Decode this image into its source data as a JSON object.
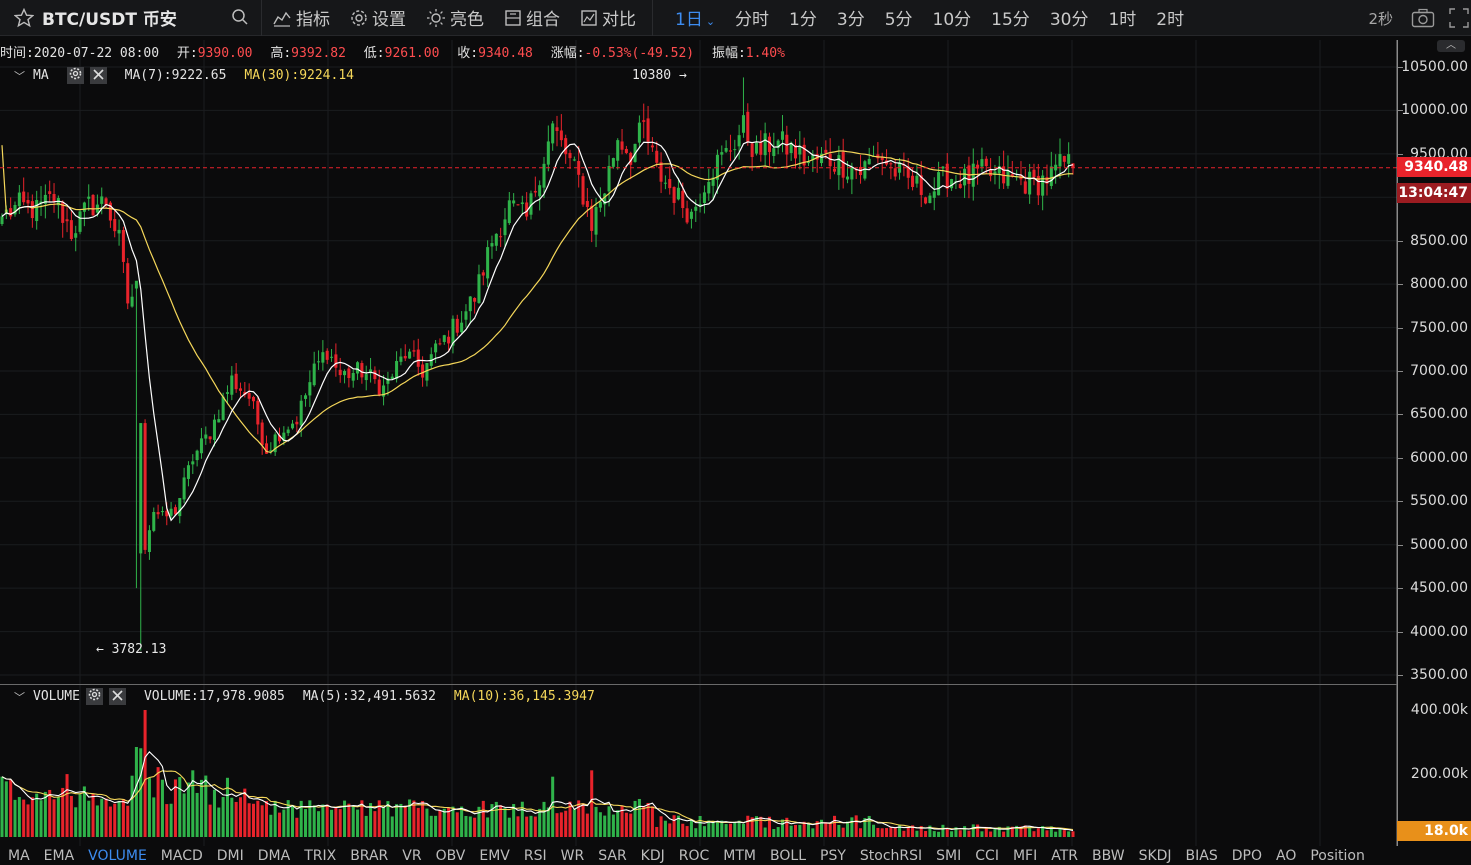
{
  "toolbar": {
    "symbol": "BTC/USDT 币安",
    "buttons": [
      "指标",
      "设置",
      "亮色",
      "组合",
      "对比"
    ],
    "intervals": [
      "1日",
      "分时",
      "1分",
      "3分",
      "5分",
      "10分",
      "15分",
      "30分",
      "1时",
      "2时"
    ],
    "active_interval": "1日",
    "refresh": "2秒"
  },
  "info": {
    "time_label": "时间:",
    "time": "2020-07-22 08:00",
    "open_label": "开:",
    "open": "9390.00",
    "high_label": "高:",
    "high": "9392.82",
    "low_label": "低:",
    "low": "9261.00",
    "close_label": "收:",
    "close": "9340.48",
    "change_label": "涨幅:",
    "change": "-0.53%(-49.52)",
    "amp_label": "振幅:",
    "amp": "1.40%"
  },
  "ma_header": {
    "name": "MA",
    "ma7": "MA(7):9222.65",
    "ma30": "MA(30):9224.14"
  },
  "vol_header": {
    "name": "VOLUME",
    "vol": "VOLUME:17,978.9085",
    "ma5": "MA(5):32,491.5632",
    "ma10": "MA(10):36,145.3947"
  },
  "annotations": {
    "high": "10380 →",
    "low": "← 3782.13"
  },
  "price_axis": [
    "10500.00",
    "10000.00",
    "9500.00",
    "9000.00",
    "8500.00",
    "8000.00",
    "7500.00",
    "7000.00",
    "6500.00",
    "6000.00",
    "5500.00",
    "5000.00",
    "4500.00",
    "4000.00",
    "3500.00"
  ],
  "volume_axis": [
    "400.00k",
    "200.00k"
  ],
  "last_price": "9340.48",
  "countdown": "13:04:47",
  "last_volume": "18.0k",
  "colors": {
    "up": "#2fb34a",
    "down": "#e8232b",
    "ma7": "#ffffff",
    "ma30": "#f5d75a",
    "accent": "#3d8cf0"
  },
  "indicator_tabs": [
    "MA",
    "EMA",
    "VOLUME",
    "MACD",
    "DMI",
    "DMA",
    "TRIX",
    "BRAR",
    "VR",
    "OBV",
    "EMV",
    "RSI",
    "WR",
    "SAR",
    "KDJ",
    "ROC",
    "MTM",
    "BOLL",
    "PSY",
    "StochRSI",
    "SMI",
    "CCI",
    "MFI",
    "ATR",
    "BBW",
    "SKDJ",
    "BIAS",
    "DPO",
    "AO",
    "Position"
  ],
  "active_tab": "VOLUME",
  "chart_data": {
    "type": "candlestick",
    "price_range": [
      3500,
      10500
    ],
    "volume_range": [
      0,
      400000
    ],
    "anchors_close": [
      [
        0,
        8780
      ],
      [
        4,
        8900
      ],
      [
        8,
        8850
      ],
      [
        12,
        9000
      ],
      [
        16,
        8600
      ],
      [
        20,
        8900
      ],
      [
        24,
        8950
      ],
      [
        27,
        8500
      ],
      [
        29,
        7800
      ],
      [
        31,
        7950
      ],
      [
        33,
        5000
      ],
      [
        35,
        5400
      ],
      [
        37,
        5300
      ],
      [
        40,
        5400
      ],
      [
        44,
        6000
      ],
      [
        48,
        6300
      ],
      [
        53,
        6900
      ],
      [
        57,
        6700
      ],
      [
        61,
        6100
      ],
      [
        64,
        6300
      ],
      [
        68,
        6450
      ],
      [
        72,
        7000
      ],
      [
        75,
        7250
      ],
      [
        78,
        6950
      ],
      [
        83,
        7000
      ],
      [
        88,
        6800
      ],
      [
        93,
        7200
      ],
      [
        97,
        7000
      ],
      [
        101,
        7300
      ],
      [
        105,
        7550
      ],
      [
        109,
        7850
      ],
      [
        113,
        8500
      ],
      [
        117,
        8900
      ],
      [
        121,
        8750
      ],
      [
        124,
        9300
      ],
      [
        127,
        9800
      ],
      [
        130,
        9500
      ],
      [
        133,
        9200
      ],
      [
        136,
        8700
      ],
      [
        139,
        9100
      ],
      [
        142,
        9700
      ],
      [
        145,
        9500
      ],
      [
        148,
        9800
      ],
      [
        151,
        9300
      ],
      [
        155,
        9050
      ],
      [
        159,
        8800
      ],
      [
        163,
        9300
      ],
      [
        167,
        9500
      ],
      [
        171,
        9800
      ],
      [
        174,
        9500
      ],
      [
        178,
        9650
      ],
      [
        182,
        9550
      ],
      [
        186,
        9400
      ],
      [
        190,
        9450
      ],
      [
        194,
        9380
      ],
      [
        198,
        9300
      ],
      [
        202,
        9500
      ],
      [
        206,
        9300
      ],
      [
        210,
        9150
      ],
      [
        214,
        9050
      ],
      [
        218,
        9250
      ],
      [
        222,
        9200
      ],
      [
        226,
        9280
      ],
      [
        230,
        9230
      ],
      [
        234,
        9200
      ],
      [
        238,
        9150
      ],
      [
        242,
        9250
      ],
      [
        245,
        9400
      ],
      [
        247,
        9340
      ]
    ],
    "last_candle": {
      "open": 9390.0,
      "high": 9392.82,
      "low": 9261.0,
      "close": 9340.48
    }
  }
}
